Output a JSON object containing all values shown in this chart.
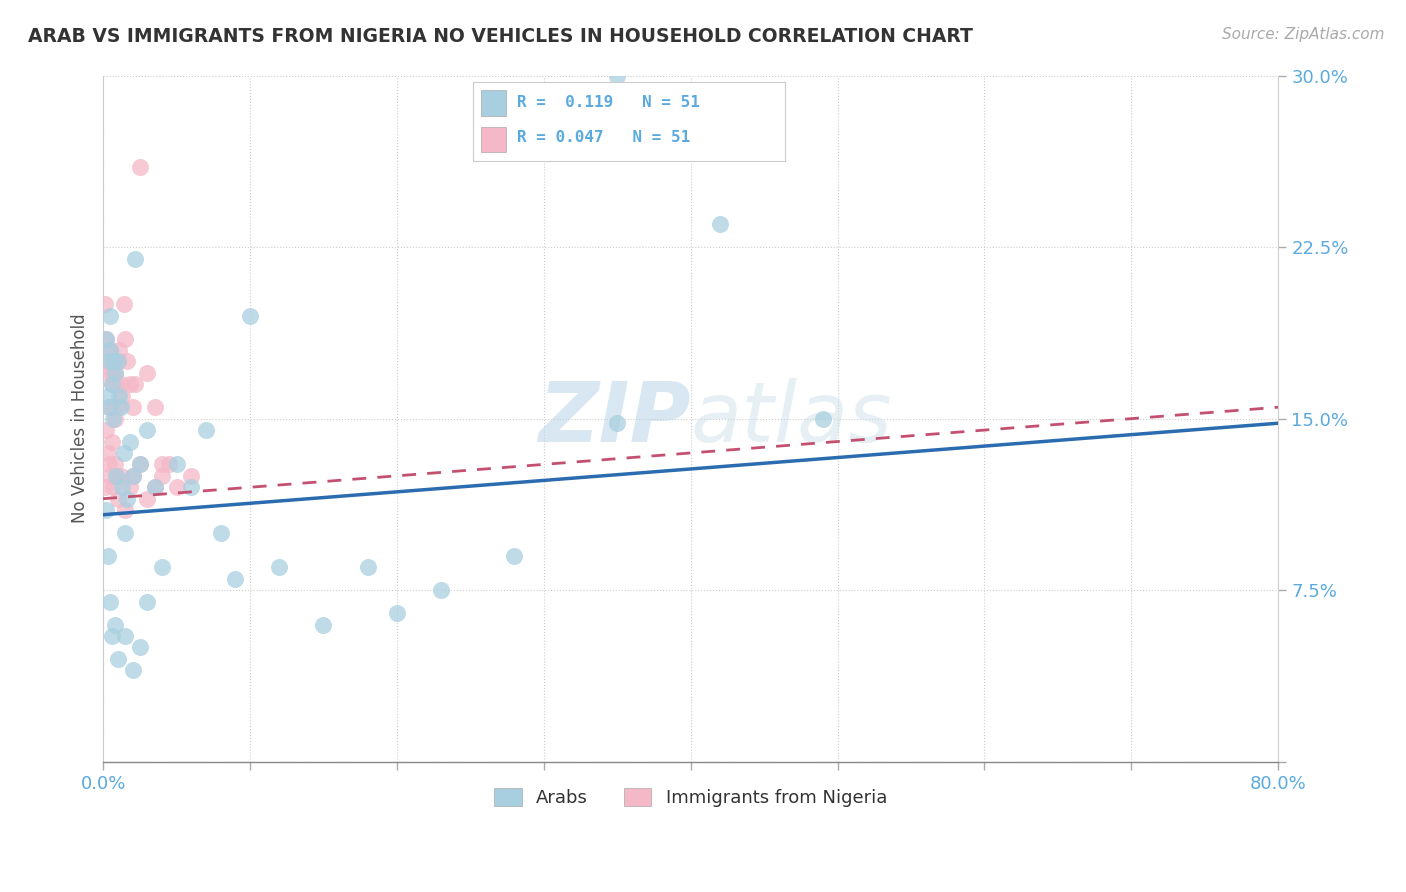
{
  "title": "ARAB VS IMMIGRANTS FROM NIGERIA NO VEHICLES IN HOUSEHOLD CORRELATION CHART",
  "source": "Source: ZipAtlas.com",
  "ylabel": "No Vehicles in Household",
  "xlim": [
    0.0,
    0.8
  ],
  "ylim": [
    0.0,
    0.3
  ],
  "xticks": [
    0.0,
    0.1,
    0.2,
    0.3,
    0.4,
    0.5,
    0.6,
    0.7,
    0.8
  ],
  "yticks": [
    0.0,
    0.075,
    0.15,
    0.225,
    0.3
  ],
  "R_arab": 0.119,
  "R_nigeria": 0.047,
  "N_arab": 51,
  "N_nigeria": 51,
  "arab_color": "#a8cfe0",
  "nigeria_color": "#f4b8c8",
  "arab_line_color": "#2b6cb0",
  "nigeria_line_color": "#c45070",
  "tick_color": "#5aaae0",
  "watermark": "ZIPatlas",
  "watermark_zip": "ZIP",
  "legend_arab_label": "Arabs",
  "legend_nigeria_label": "Immigrants from Nigeria",
  "arab_x": [
    0.002,
    0.003,
    0.004,
    0.004,
    0.005,
    0.005,
    0.006,
    0.007,
    0.007,
    0.008,
    0.009,
    0.01,
    0.011,
    0.012,
    0.013,
    0.014,
    0.015,
    0.016,
    0.018,
    0.02,
    0.022,
    0.025,
    0.03,
    0.035,
    0.04,
    0.05,
    0.06,
    0.07,
    0.08,
    0.09,
    0.1,
    0.12,
    0.15,
    0.18,
    0.2,
    0.23,
    0.28,
    0.35,
    0.42,
    0.49,
    0.002,
    0.003,
    0.005,
    0.006,
    0.008,
    0.01,
    0.015,
    0.02,
    0.025,
    0.03,
    0.35
  ],
  "arab_y": [
    0.185,
    0.16,
    0.175,
    0.155,
    0.18,
    0.195,
    0.165,
    0.175,
    0.15,
    0.17,
    0.125,
    0.175,
    0.16,
    0.155,
    0.12,
    0.135,
    0.1,
    0.115,
    0.14,
    0.125,
    0.22,
    0.13,
    0.145,
    0.12,
    0.085,
    0.13,
    0.12,
    0.145,
    0.1,
    0.08,
    0.195,
    0.085,
    0.06,
    0.085,
    0.065,
    0.075,
    0.09,
    0.3,
    0.235,
    0.15,
    0.11,
    0.09,
    0.07,
    0.055,
    0.06,
    0.045,
    0.055,
    0.04,
    0.05,
    0.07,
    0.148
  ],
  "nigeria_x": [
    0.001,
    0.002,
    0.003,
    0.003,
    0.004,
    0.004,
    0.005,
    0.005,
    0.006,
    0.006,
    0.007,
    0.007,
    0.008,
    0.008,
    0.009,
    0.01,
    0.01,
    0.011,
    0.012,
    0.013,
    0.014,
    0.015,
    0.016,
    0.018,
    0.02,
    0.022,
    0.025,
    0.03,
    0.035,
    0.04,
    0.001,
    0.002,
    0.003,
    0.004,
    0.005,
    0.006,
    0.007,
    0.008,
    0.009,
    0.01,
    0.012,
    0.015,
    0.018,
    0.02,
    0.025,
    0.03,
    0.035,
    0.04,
    0.045,
    0.05,
    0.06
  ],
  "nigeria_y": [
    0.2,
    0.185,
    0.175,
    0.17,
    0.175,
    0.155,
    0.18,
    0.175,
    0.17,
    0.165,
    0.175,
    0.155,
    0.17,
    0.15,
    0.165,
    0.175,
    0.155,
    0.18,
    0.165,
    0.16,
    0.2,
    0.185,
    0.175,
    0.165,
    0.155,
    0.165,
    0.26,
    0.17,
    0.155,
    0.13,
    0.12,
    0.145,
    0.135,
    0.13,
    0.125,
    0.14,
    0.12,
    0.13,
    0.125,
    0.115,
    0.125,
    0.11,
    0.12,
    0.125,
    0.13,
    0.115,
    0.12,
    0.125,
    0.13,
    0.12,
    0.125
  ],
  "arab_line_x": [
    0.0,
    0.8
  ],
  "arab_line_y": [
    0.108,
    0.148
  ],
  "nigeria_line_x": [
    0.0,
    0.8
  ],
  "nigeria_line_y": [
    0.115,
    0.155
  ]
}
